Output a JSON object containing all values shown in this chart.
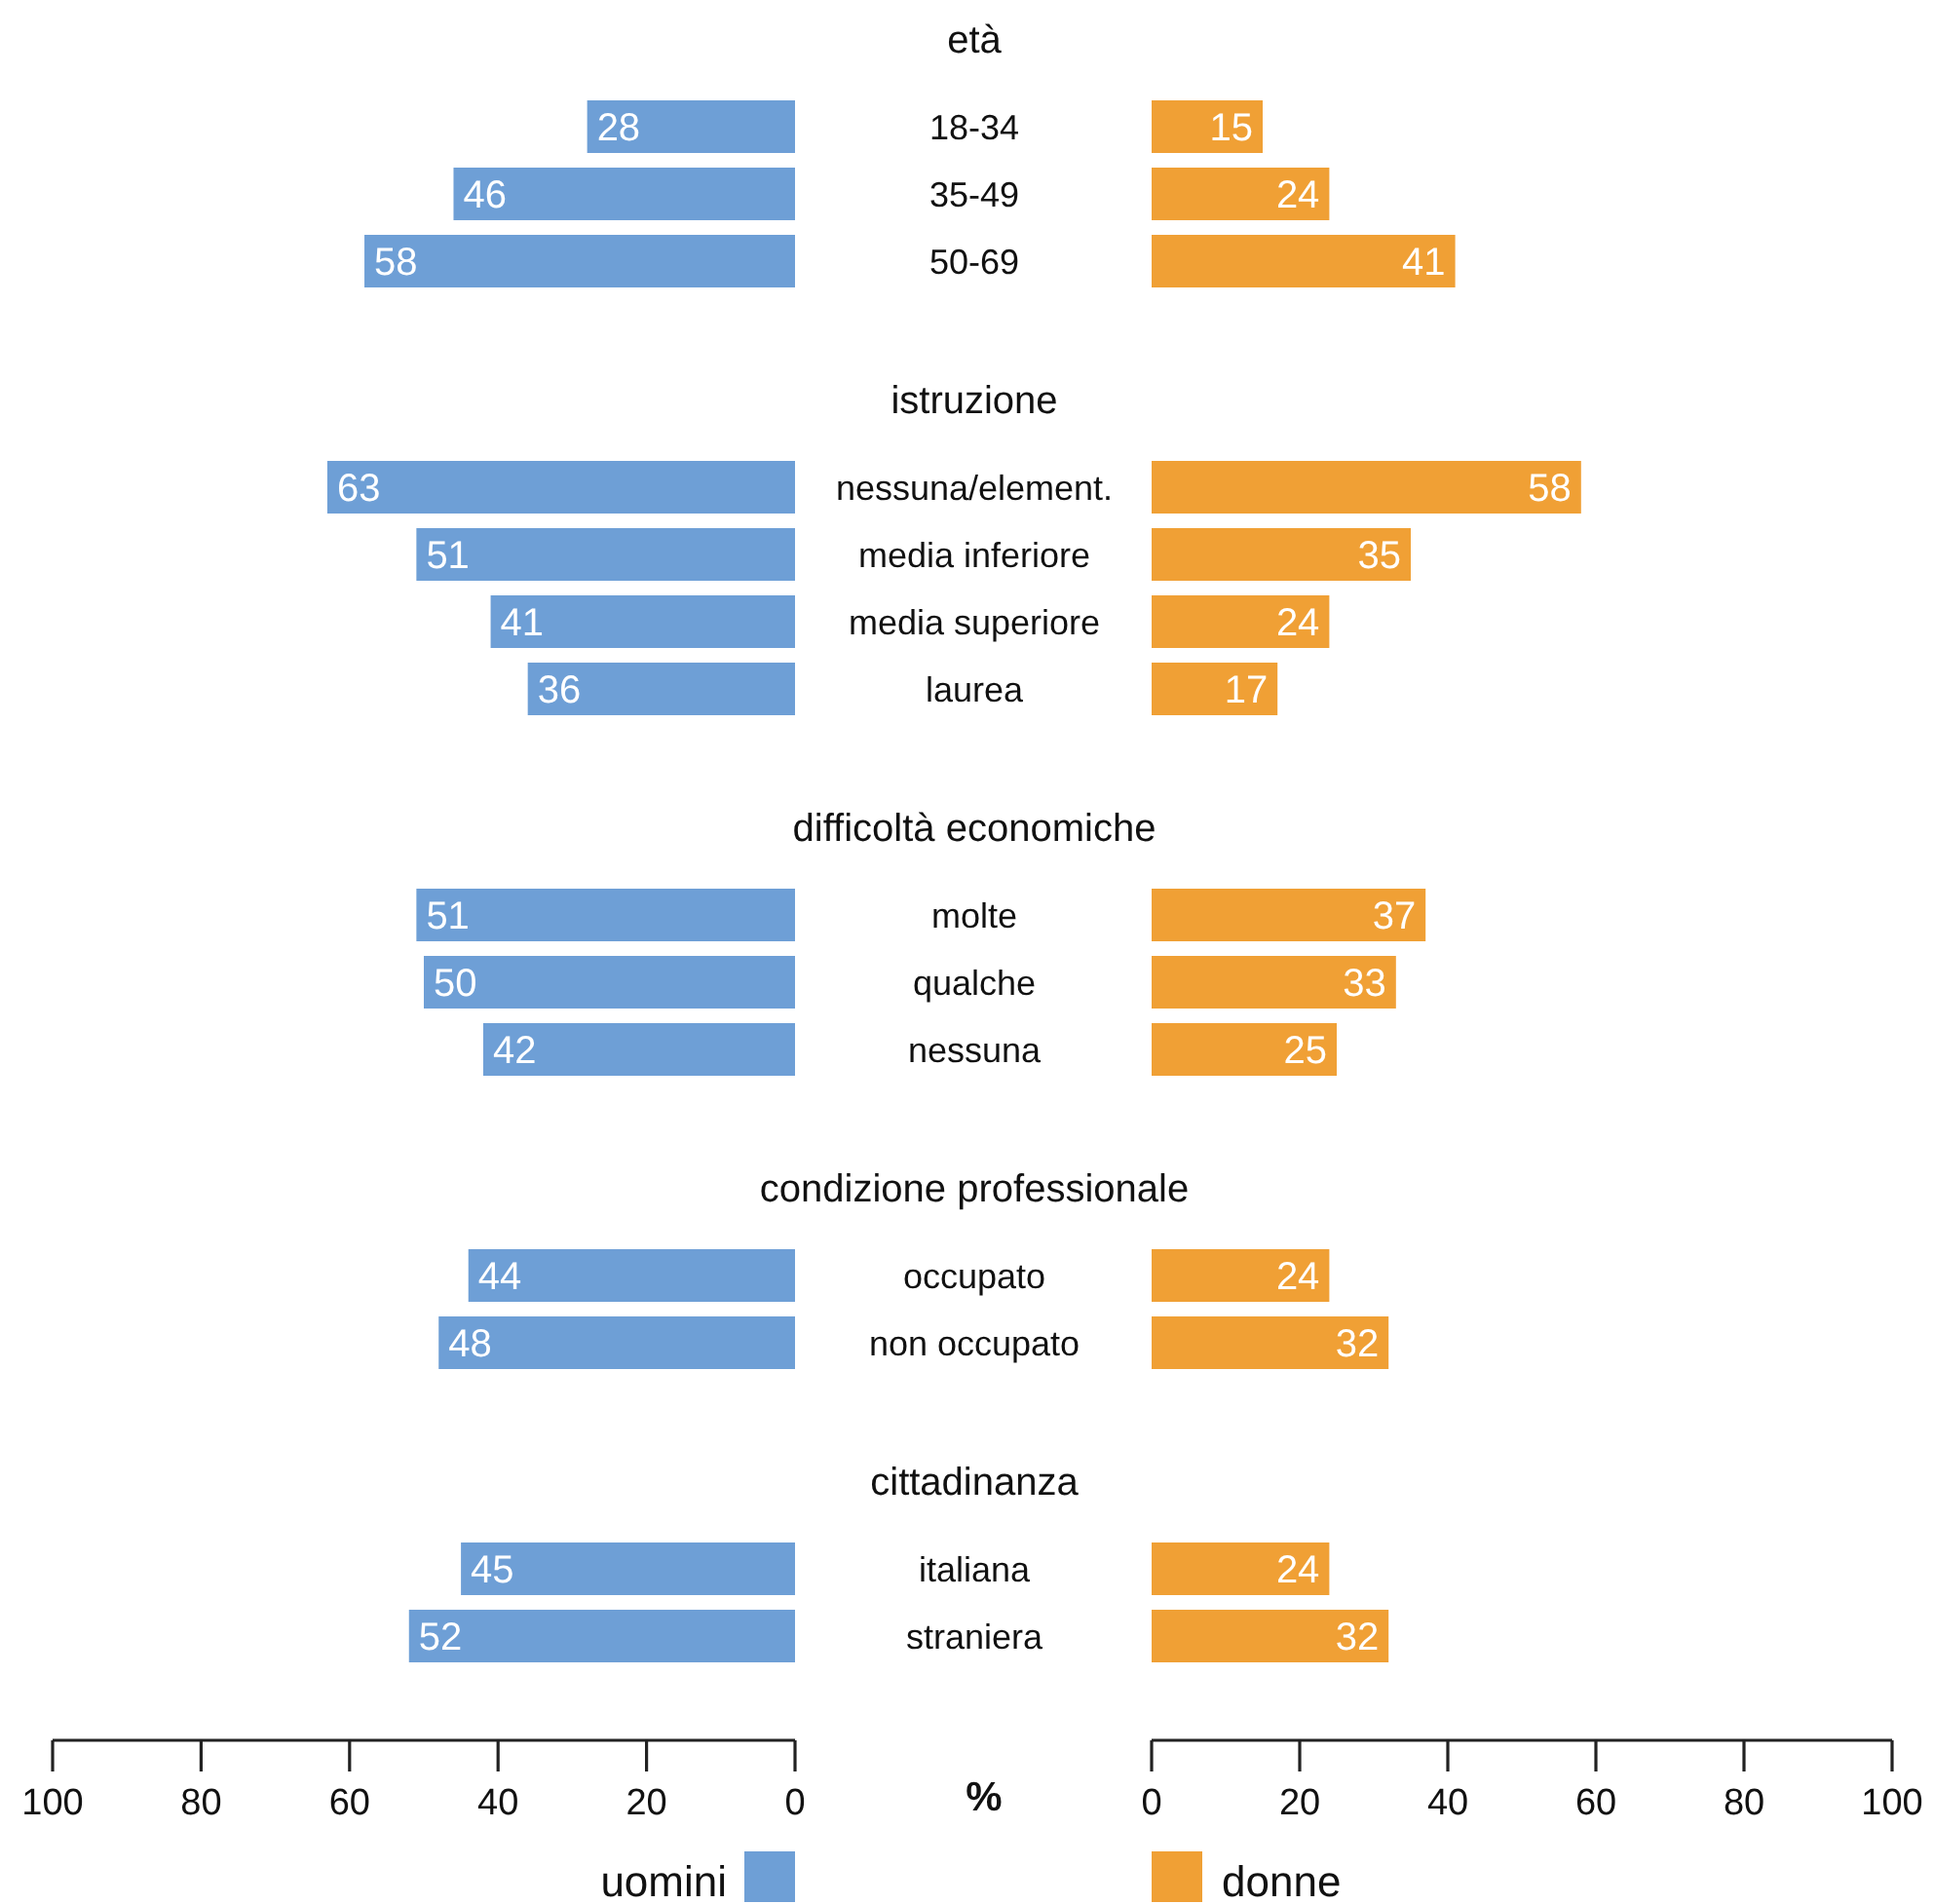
{
  "chart_data": [
    {
      "type": "bar",
      "orientation": "horizontal",
      "title": "età",
      "categories": [
        "18-34",
        "35-49",
        "50-69"
      ],
      "series": [
        {
          "color": "#6e9fd6",
          "values": [
            28,
            46,
            58
          ]
        }
      ],
      "xlim": [
        100,
        0
      ],
      "tick_labels": "y",
      "data_labels": true
    },
    {
      "type": "bar",
      "orientation": "horizontal",
      "categories": [
        "18-34",
        "35-49",
        "50-69"
      ],
      "series": [
        {
          "color": "#f0a035",
          "values": [
            15,
            24,
            41
          ]
        }
      ],
      "xlim": [
        0,
        100
      ],
      "tick_labels": false,
      "data_labels": true
    },
    {
      "type": "bar",
      "orientation": "horizontal",
      "title": "istruzione",
      "categories": [
        "nessuna/element.",
        "media inferiore",
        "media superiore",
        "laurea"
      ],
      "series": [
        {
          "color": "#6e9fd6",
          "values": [
            63,
            51,
            41,
            36
          ]
        }
      ],
      "xlim": [
        100,
        0
      ],
      "tick_labels": "y",
      "data_labels": true
    },
    {
      "type": "bar",
      "orientation": "horizontal",
      "categories": [
        "nessuna/element.",
        "media inferiore",
        "media superiore",
        "laurea"
      ],
      "series": [
        {
          "color": "#f0a035",
          "values": [
            58,
            35,
            24,
            17
          ]
        }
      ],
      "xlim": [
        0,
        100
      ],
      "tick_labels": false,
      "data_labels": true
    },
    {
      "type": "bar",
      "orientation": "horizontal",
      "title": "difficoltà economiche",
      "categories": [
        "molte",
        "qualche",
        "nessuna"
      ],
      "series": [
        {
          "color": "#6e9fd6",
          "values": [
            51,
            50,
            42
          ]
        }
      ],
      "xlim": [
        100,
        0
      ],
      "tick_labels": "y",
      "data_labels": true
    },
    {
      "type": "bar",
      "orientation": "horizontal",
      "categories": [
        "molte",
        "qualche",
        "nessuna"
      ],
      "series": [
        {
          "color": "#f0a035",
          "values": [
            37,
            33,
            25
          ]
        }
      ],
      "xlim": [
        0,
        100
      ],
      "tick_labels": false,
      "data_labels": true
    },
    {
      "type": "bar",
      "orientation": "horizontal",
      "title": "condizione professionale",
      "categories": [
        "occupato",
        "non occupato"
      ],
      "series": [
        {
          "color": "#6e9fd6",
          "values": [
            44,
            48
          ]
        }
      ],
      "xlim": [
        100,
        0
      ],
      "tick_labels": "y",
      "data_labels": true
    },
    {
      "type": "bar",
      "orientation": "horizontal",
      "categories": [
        "occupato",
        "non occupato"
      ],
      "series": [
        {
          "color": "#f0a035",
          "values": [
            24,
            32
          ]
        }
      ],
      "xlim": [
        0,
        100
      ],
      "tick_labels": false,
      "data_labels": true
    },
    {
      "type": "bar",
      "orientation": "horizontal",
      "title": "cittadinanza",
      "xlabel": "%",
      "categories": [
        "italiana",
        "straniera"
      ],
      "series": [
        {
          "name": "uomini",
          "color": "#6e9fd6",
          "values": [
            45,
            52
          ]
        }
      ],
      "xlim": [
        100,
        0
      ],
      "xticks": [
        100,
        80,
        60,
        40,
        20,
        0
      ],
      "legend": "bottom",
      "data_labels": true
    },
    {
      "type": "bar",
      "orientation": "horizontal",
      "categories": [
        "italiana",
        "straniera"
      ],
      "series": [
        {
          "name": "donne",
          "color": "#f0a035",
          "values": [
            24,
            32
          ]
        }
      ],
      "xlim": [
        0,
        100
      ],
      "xticks": [
        0,
        20,
        40,
        60,
        80,
        100
      ],
      "tick_labels": "x",
      "legend": "bottom",
      "data_labels": true
    }
  ]
}
